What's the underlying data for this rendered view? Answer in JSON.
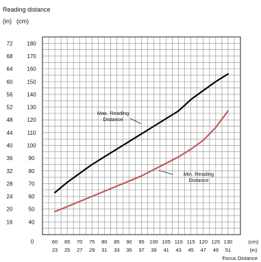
{
  "chart_data": {
    "type": "line",
    "title": "Reading distance",
    "y_units_label": "(in)",
    "y_units_label_cm": "(cm)",
    "xlabel": "Focus Distance",
    "x_units_label": "(cm)",
    "x_units_label_in": "(in)",
    "x_ticks_cm": [
      "60",
      "65",
      "70",
      "75",
      "80",
      "85",
      "90",
      "95",
      "100",
      "105",
      "110",
      "115",
      "120",
      "125",
      "130"
    ],
    "x_ticks_in": [
      "23",
      "25",
      "27",
      "29",
      "31",
      "33",
      "35",
      "37",
      "39",
      "41",
      "43",
      "45",
      "47",
      "49",
      "51"
    ],
    "x_origin_label": "0",
    "y_ticks_cm": [
      "40",
      "50",
      "60",
      "70",
      "80",
      "90",
      "100",
      "110",
      "120",
      "130",
      "140",
      "150",
      "160",
      "170",
      "180"
    ],
    "y_ticks_in": [
      "16",
      "20",
      "24",
      "28",
      "32",
      "36",
      "40",
      "44",
      "48",
      "52",
      "56",
      "60",
      "64",
      "68",
      "72"
    ],
    "xlim": [
      55,
      135
    ],
    "ylim": [
      30,
      185
    ],
    "series": [
      {
        "name": "Max. Reading Distance",
        "label_lines": [
          "Max. Reading",
          "Distance"
        ],
        "color": "#000000",
        "x": [
          60,
          65,
          70,
          75,
          80,
          85,
          90,
          95,
          100,
          105,
          110,
          115,
          120,
          125,
          130
        ],
        "values": [
          63,
          71,
          78,
          85,
          91,
          97,
          103,
          109,
          115,
          121,
          127,
          136,
          143,
          150,
          156
        ]
      },
      {
        "name": "Min. Reading Distance",
        "label_lines": [
          "Min. Reading",
          "Distance"
        ],
        "color": "#c05a5a",
        "x": [
          60,
          65,
          70,
          75,
          80,
          85,
          90,
          95,
          100,
          105,
          110,
          115,
          120,
          125,
          130
        ],
        "values": [
          48,
          52,
          56,
          60,
          64,
          68,
          72,
          76,
          81,
          86,
          91,
          97,
          104,
          114,
          127
        ]
      }
    ],
    "grid": true
  }
}
